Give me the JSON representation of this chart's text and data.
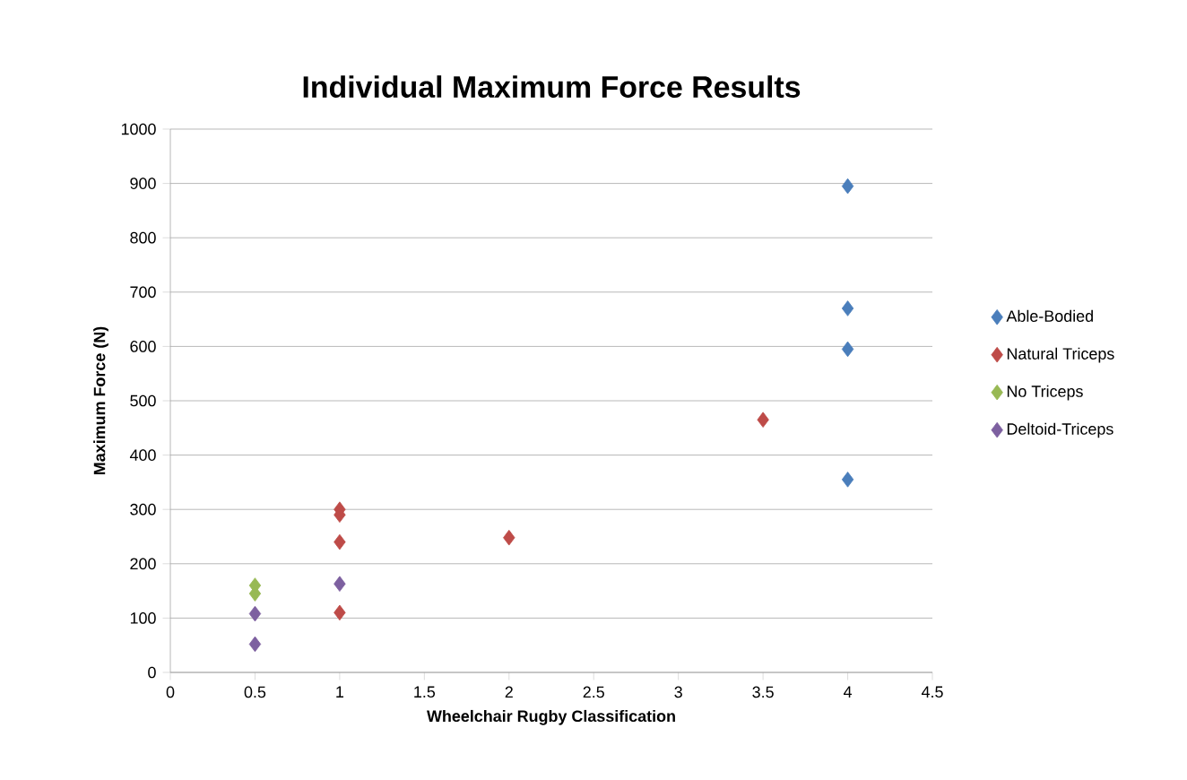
{
  "chart_data": {
    "type": "scatter",
    "title": "Individual Maximum Force Results",
    "xlabel": "Wheelchair Rugby Classification",
    "ylabel": "Maximum Force (N)",
    "xlim": [
      0,
      4.5
    ],
    "xticks": [
      0,
      0.5,
      1,
      1.5,
      2,
      2.5,
      3,
      3.5,
      4,
      4.5
    ],
    "ylim": [
      0,
      1000
    ],
    "yticks": [
      0,
      100,
      200,
      300,
      400,
      500,
      600,
      700,
      800,
      900,
      1000
    ],
    "grid": "y",
    "legend": "right",
    "marker": "diamond",
    "series": [
      {
        "name": "Able-Bodied",
        "color": "#4a7ebb",
        "x": [
          4,
          4,
          4,
          4
        ],
        "values": [
          895,
          670,
          595,
          355
        ]
      },
      {
        "name": "Natural Triceps",
        "color": "#be4b48",
        "x": [
          3.5,
          1,
          1,
          1,
          1,
          2
        ],
        "values": [
          465,
          300,
          290,
          240,
          110,
          248
        ]
      },
      {
        "name": "No Triceps",
        "color": "#98b954",
        "x": [
          0.5,
          0.5
        ],
        "values": [
          160,
          145
        ]
      },
      {
        "name": "Deltoid-Triceps",
        "color": "#7d60a0",
        "x": [
          0.5,
          0.5,
          1
        ],
        "values": [
          108,
          52,
          163
        ]
      }
    ]
  }
}
